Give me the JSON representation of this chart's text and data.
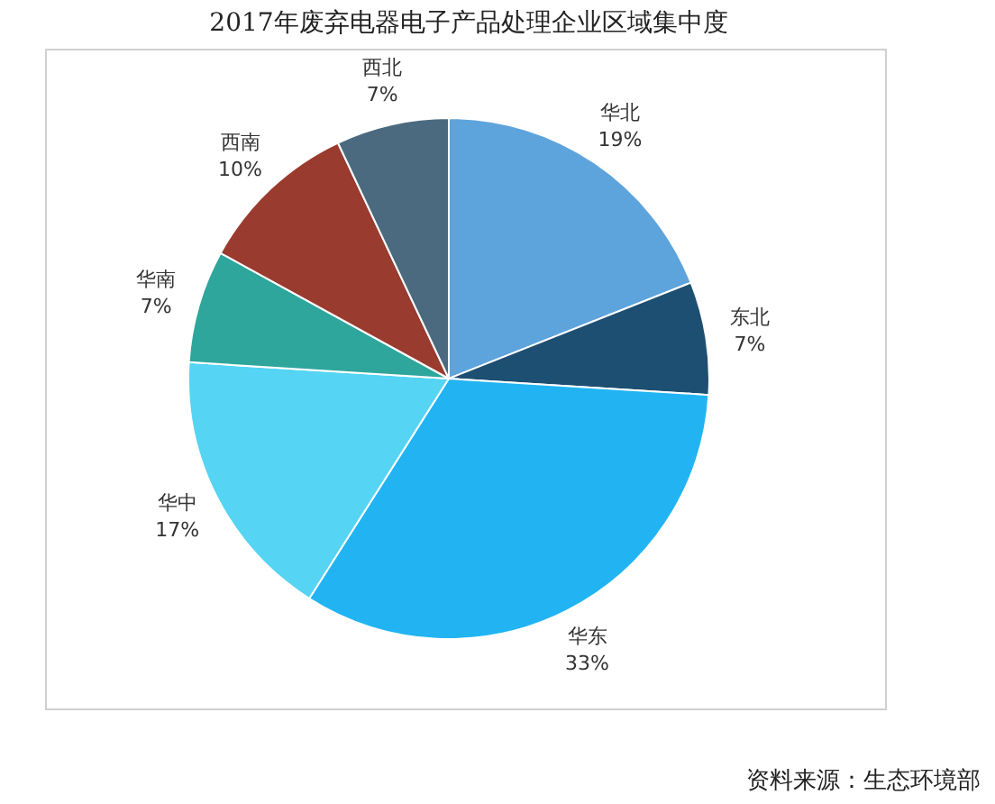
{
  "chart_data": {
    "type": "pie",
    "title": "2017年废弃电器电子产品处理企业区域集中度",
    "categories": [
      "华北",
      "东北",
      "华东",
      "华中",
      "华南",
      "西南",
      "西北"
    ],
    "values": [
      19,
      7,
      33,
      17,
      7,
      10,
      7
    ],
    "value_labels": [
      "19%",
      "7%",
      "33%",
      "17%",
      "7%",
      "10%",
      "7%"
    ],
    "colors": [
      "#5ea4dc",
      "#1d4f72",
      "#22b4f2",
      "#55d4f4",
      "#2ea69c",
      "#9a3b2f",
      "#4b6a7f"
    ],
    "annotations": [
      "资料来源：生态环境部"
    ],
    "legend": false
  }
}
